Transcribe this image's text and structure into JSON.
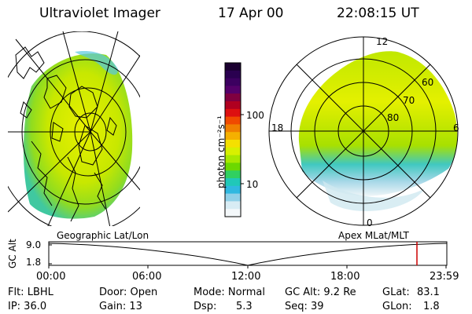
{
  "header": {
    "instrument": "Ultraviolet Imager",
    "date": "17 Apr 00",
    "time": "22:08:15 UT"
  },
  "colorbar": {
    "unit_label": "photon cm⁻²s⁻¹",
    "ticks": [
      "100",
      "10"
    ],
    "colors": [
      "#1a0030",
      "#2a0050",
      "#3c0060",
      "#55006a",
      "#800040",
      "#b00020",
      "#dd1010",
      "#f04a00",
      "#f08000",
      "#f5b000",
      "#f5e000",
      "#d8f000",
      "#a8e800",
      "#6cd800",
      "#30d060",
      "#20c8b8",
      "#30b8e0",
      "#90d0e8",
      "#d8ecf4",
      "#f4f8fa"
    ]
  },
  "geographic_panel": {
    "projection_label": "Geographic Lat/Lon"
  },
  "polar_panel": {
    "projection_label": "Apex  MLat/MLT",
    "mlt_labels": {
      "top": "12",
      "left": "18",
      "right": "6",
      "bottom": "0"
    },
    "lat_labels": [
      "60",
      "70",
      "80"
    ]
  },
  "timeline": {
    "ylabel": "GC Alt",
    "y_ticks": [
      "9.0",
      "1.8"
    ],
    "x_ticks": [
      "00:00",
      "06:00",
      "12:00",
      "18:00",
      "23:59"
    ],
    "marker_color": "#cc0000"
  },
  "status": {
    "flt": "Flt: LBHL",
    "door": "Door: Open",
    "mode": "Mode: Normal",
    "gcalt": "GC Alt: 9.2 Re",
    "glat_label": "GLat:",
    "glat_value": "83.1",
    "ip": "IP: 36.0",
    "gain": "Gain: 13",
    "dsp_label": "Dsp:",
    "dsp_value": "5.3",
    "seq": "Seq: 39",
    "glon_label": "GLon:",
    "glon_value": "1.8"
  }
}
